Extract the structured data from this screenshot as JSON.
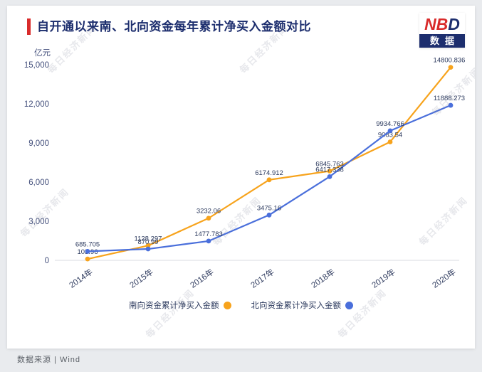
{
  "header": {
    "title": "自开通以来南、北向资金每年累计净买入金额对比",
    "accent_color": "#d92b2b"
  },
  "logo": {
    "red_part": "NB",
    "navy_part": "D",
    "banner": "数据"
  },
  "watermark": {
    "text": "每日经济新闻"
  },
  "footer": {
    "source": "数据来源 | Wind"
  },
  "colors": {
    "south": "#f7a31c",
    "north": "#4a6fdb",
    "title_navy": "#1d2e6e",
    "accent_red": "#d92b2b"
  },
  "chart_data": {
    "type": "line",
    "title": "自开通以来南、北向资金每年累计净买入金额对比",
    "unit_label": "亿元",
    "categories": [
      "2014年",
      "2015年",
      "2016年",
      "2017年",
      "2018年",
      "2019年",
      "2020年"
    ],
    "series": [
      {
        "name": "南向资金累计净买入金额",
        "color": "#f7a31c",
        "values": [
          103.96,
          1128.297,
          3232.06,
          6174.912,
          6845.763,
          9083.54,
          14800.836
        ]
      },
      {
        "name": "北向资金累计净买入金额",
        "color": "#4a6fdb",
        "values": [
          685.705,
          870.99,
          1477.783,
          3475.16,
          6417.338,
          9934.766,
          11888.273
        ]
      }
    ],
    "ylim": [
      0,
      15000
    ],
    "y_ticks": [
      0,
      3000,
      6000,
      9000,
      12000,
      15000
    ],
    "y_tick_labels": [
      "0",
      "3,000",
      "6,000",
      "9,000",
      "12,000",
      "15,000"
    ],
    "grid": false,
    "legend_position": "bottom",
    "data_labels": true
  }
}
